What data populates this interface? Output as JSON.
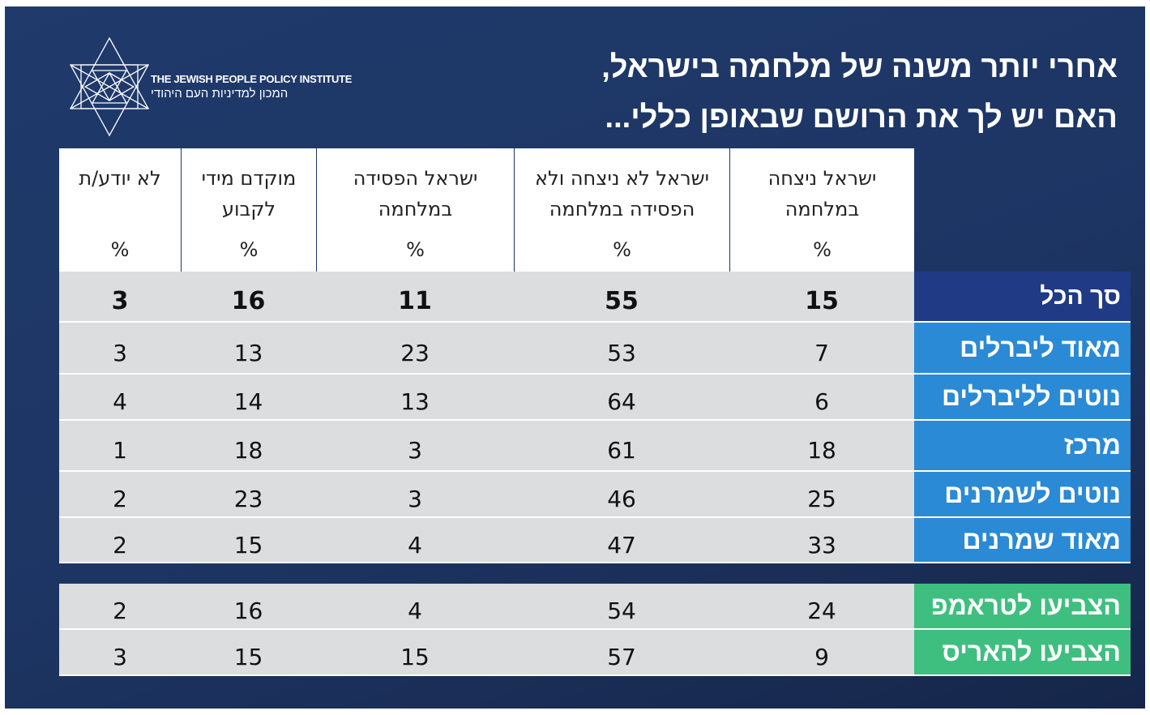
{
  "logo": {
    "name_en": "THE JEWISH PEOPLE POLICY INSTITUTE",
    "name_he": "המכון למדיניות העם היהודי"
  },
  "title": {
    "line1": "אחרי יותר משנה של מלחמה בישראל,",
    "line2": "האם יש לך את הרושם שבאופן כללי..."
  },
  "colors": {
    "background": "#1e3766",
    "total_label": "#203a85",
    "ideology_label": "#2a8ad6",
    "vote_label": "#3fbf7f",
    "row": "#dcdddf"
  },
  "chart_data": {
    "type": "table",
    "columns": [
      "ישראל ניצחה במלחמה",
      "ישראל לא ניצחה ולא הפסידה במלחמה",
      "ישראל הפסידה במלחמה",
      "מוקדם מידי לקבוע",
      "לא יודע/ת"
    ],
    "unit": "%",
    "groups": [
      {
        "rows": [
          {
            "label": "סך הכל",
            "values": [
              15,
              55,
              11,
              16,
              3
            ],
            "style": "total"
          },
          {
            "label": "מאוד ליברלים",
            "values": [
              7,
              53,
              23,
              13,
              3
            ],
            "style": "ideology"
          },
          {
            "label": "נוטים לליברלים",
            "values": [
              6,
              64,
              13,
              14,
              4
            ],
            "style": "ideology"
          },
          {
            "label": "מרכז",
            "values": [
              18,
              61,
              3,
              18,
              1
            ],
            "style": "ideology"
          },
          {
            "label": "נוטים לשמרנים",
            "values": [
              25,
              46,
              3,
              23,
              2
            ],
            "style": "ideology"
          },
          {
            "label": "מאוד שמרנים",
            "values": [
              33,
              47,
              4,
              15,
              2
            ],
            "style": "ideology"
          }
        ]
      },
      {
        "rows": [
          {
            "label": "הצביעו לטראמפ",
            "values": [
              24,
              54,
              4,
              16,
              2
            ],
            "style": "vote"
          },
          {
            "label": "הצביעו להאריס",
            "values": [
              9,
              57,
              15,
              15,
              3
            ],
            "style": "vote"
          }
        ]
      }
    ]
  }
}
